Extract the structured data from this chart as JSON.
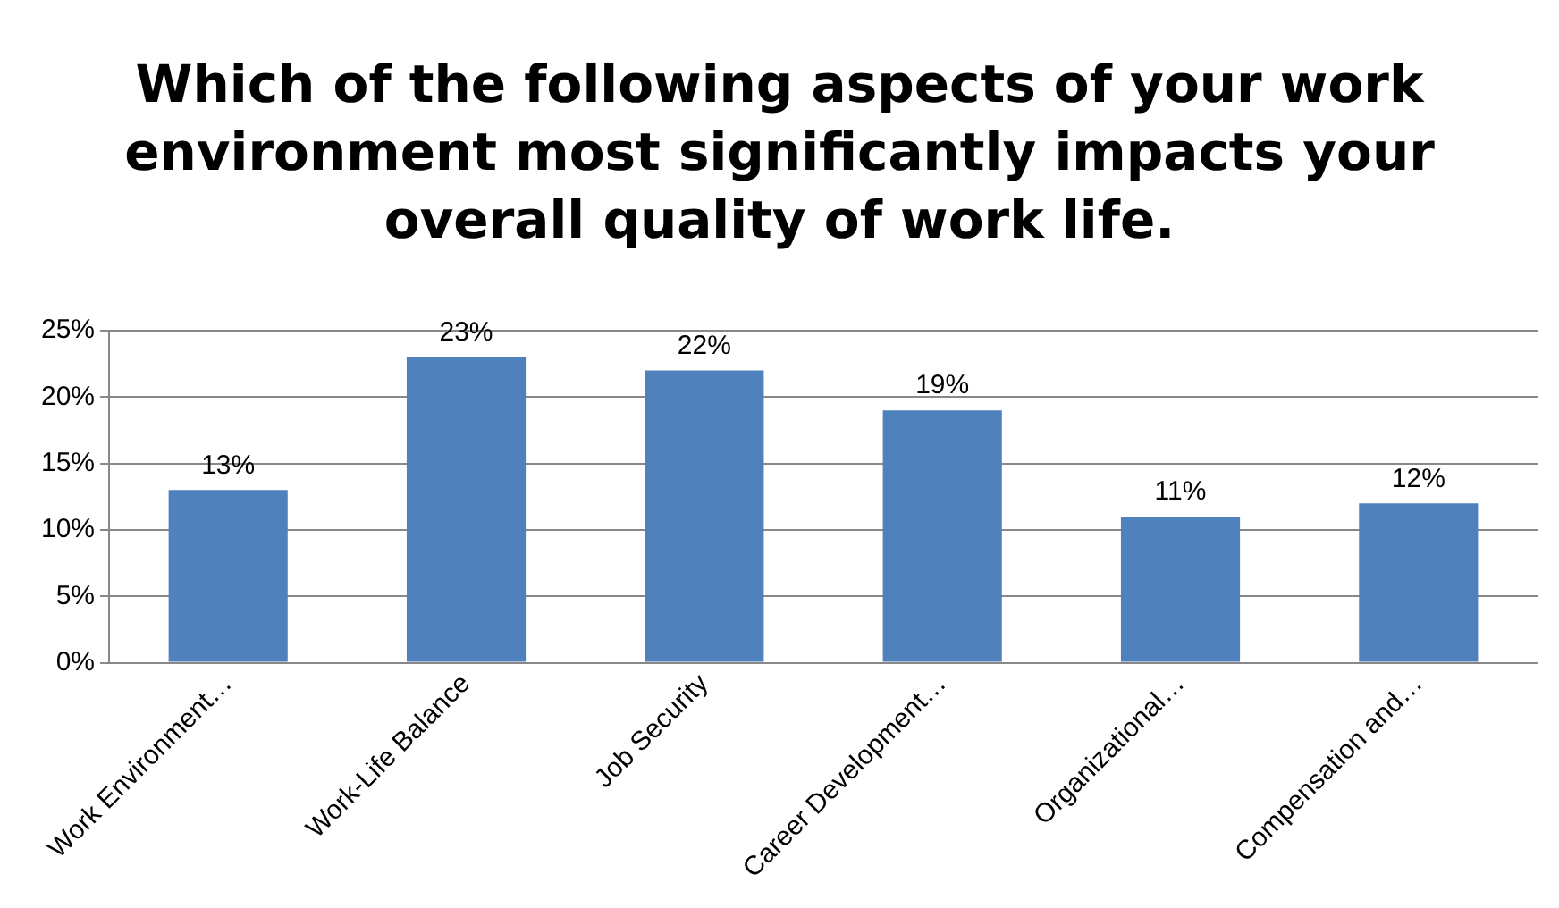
{
  "chart_data": {
    "type": "bar",
    "title": "Which of the following aspects of your work environment most significantly impacts your overall quality of work life.",
    "categories": [
      "Work Environment…",
      "Work-Life Balance",
      "Job Security",
      "Career Development…",
      "Organizational…",
      "Compensation and…"
    ],
    "values": [
      13,
      23,
      22,
      19,
      11,
      12
    ],
    "color": "#4f81bd",
    "ylim": [
      0,
      25
    ],
    "yticks": [
      {
        "value": 0,
        "label": "0%"
      },
      {
        "value": 5,
        "label": "5%"
      },
      {
        "value": 10,
        "label": "10%"
      },
      {
        "value": 15,
        "label": "15%"
      },
      {
        "value": 20,
        "label": "20%"
      },
      {
        "value": 25,
        "label": "25%"
      }
    ],
    "grid": "y",
    "value_labels": [
      "13%",
      "23%",
      "22%",
      "19%",
      "11%",
      "12%"
    ]
  }
}
